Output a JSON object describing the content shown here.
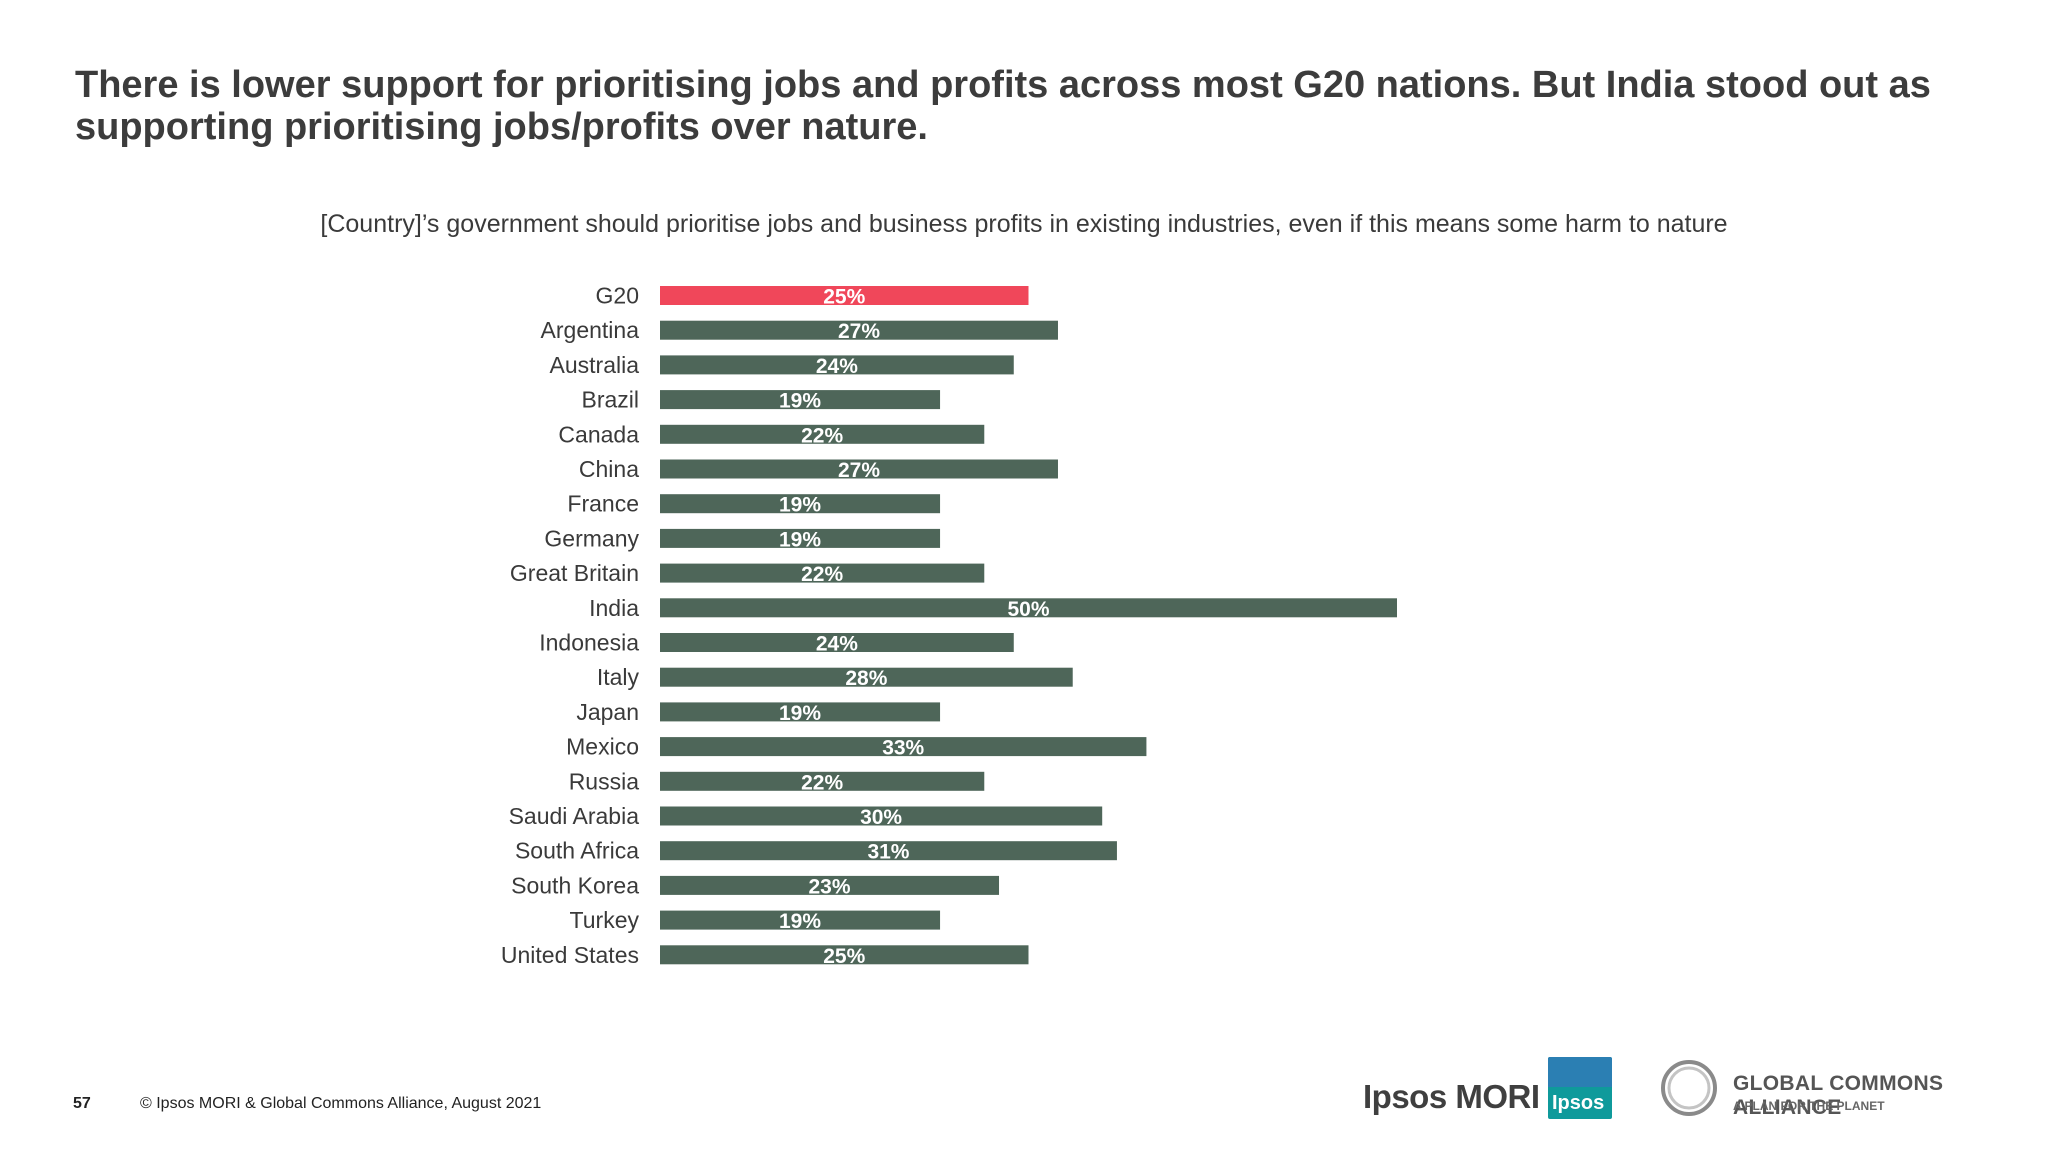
{
  "slide": {
    "title": "There is lower support for prioritising jobs and profits across most G20 nations. But India stood out as supporting prioritising jobs/profits over nature.",
    "page_number": "57",
    "copyright": "© Ipsos MORI & Global Commons Alliance, August 2021"
  },
  "logos": {
    "ipsos_mori": "Ipsos MORI",
    "ipsos_badge": "Ipsos",
    "gca_name": "GLOBAL COMMONS ALLIANCE",
    "gca_tagline": "A PLAN FOR THE PLANET"
  },
  "colors": {
    "highlight": "#f0475a",
    "bar": "#4e6659"
  },
  "chart_data": {
    "type": "bar",
    "orientation": "horizontal",
    "title": "[Country]’s government should prioritise jobs and business profits in existing industries, even if this means some harm to nature",
    "categories": [
      "G20",
      "Argentina",
      "Australia",
      "Brazil",
      "Canada",
      "China",
      "France",
      "Germany",
      "Great Britain",
      "India",
      "Indonesia",
      "Italy",
      "Japan",
      "Mexico",
      "Russia",
      "Saudi Arabia",
      "South Africa",
      "South Korea",
      "Turkey",
      "United States"
    ],
    "values": [
      25,
      27,
      24,
      19,
      22,
      27,
      19,
      19,
      22,
      50,
      24,
      28,
      19,
      33,
      22,
      30,
      31,
      23,
      19,
      25
    ],
    "value_labels": [
      "25%",
      "27%",
      "24%",
      "19%",
      "22%",
      "27%",
      "19%",
      "19%",
      "22%",
      "50%",
      "24%",
      "28%",
      "19%",
      "33%",
      "22%",
      "30%",
      "31%",
      "23%",
      "19%",
      "25%"
    ],
    "unit": "%",
    "highlight_category": "G20",
    "xlim": [
      0,
      50
    ],
    "grid": false,
    "legend": "none"
  }
}
